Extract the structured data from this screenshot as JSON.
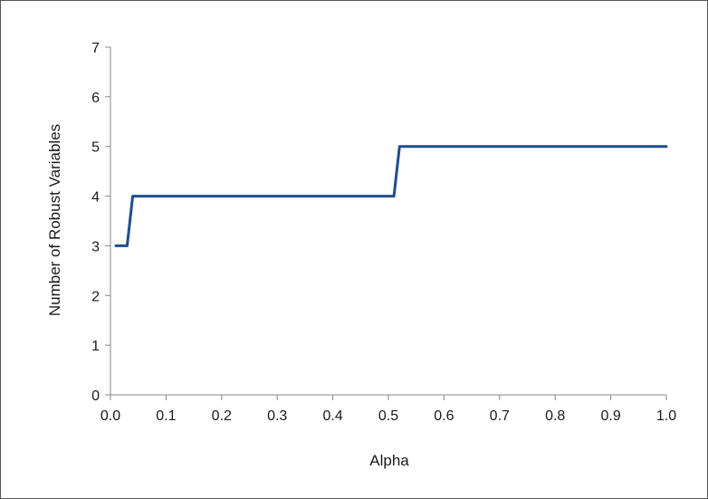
{
  "chart_data": {
    "type": "line",
    "title": "",
    "xlabel": "Alpha",
    "ylabel": "Number of Robust Variables",
    "xlim": [
      0.0,
      1.0
    ],
    "ylim": [
      0,
      7
    ],
    "x_ticks": [
      0.0,
      0.1,
      0.2,
      0.3,
      0.4,
      0.5,
      0.6,
      0.7,
      0.8,
      0.9,
      1.0
    ],
    "x_tick_labels": [
      "0.0",
      "0.1",
      "0.2",
      "0.3",
      "0.4",
      "0.5",
      "0.6",
      "0.7",
      "0.8",
      "0.9",
      "1.0"
    ],
    "y_ticks": [
      0,
      1,
      2,
      3,
      4,
      5,
      6,
      7
    ],
    "y_tick_labels": [
      "0",
      "1",
      "2",
      "3",
      "4",
      "5",
      "6",
      "7"
    ],
    "grid": false,
    "legend": "none",
    "series": [
      {
        "color": "#1f4e8c",
        "x": [
          0.01,
          0.03,
          0.04,
          0.51,
          0.52,
          1.0
        ],
        "y": [
          3,
          3,
          4,
          4,
          5,
          5
        ]
      }
    ]
  }
}
